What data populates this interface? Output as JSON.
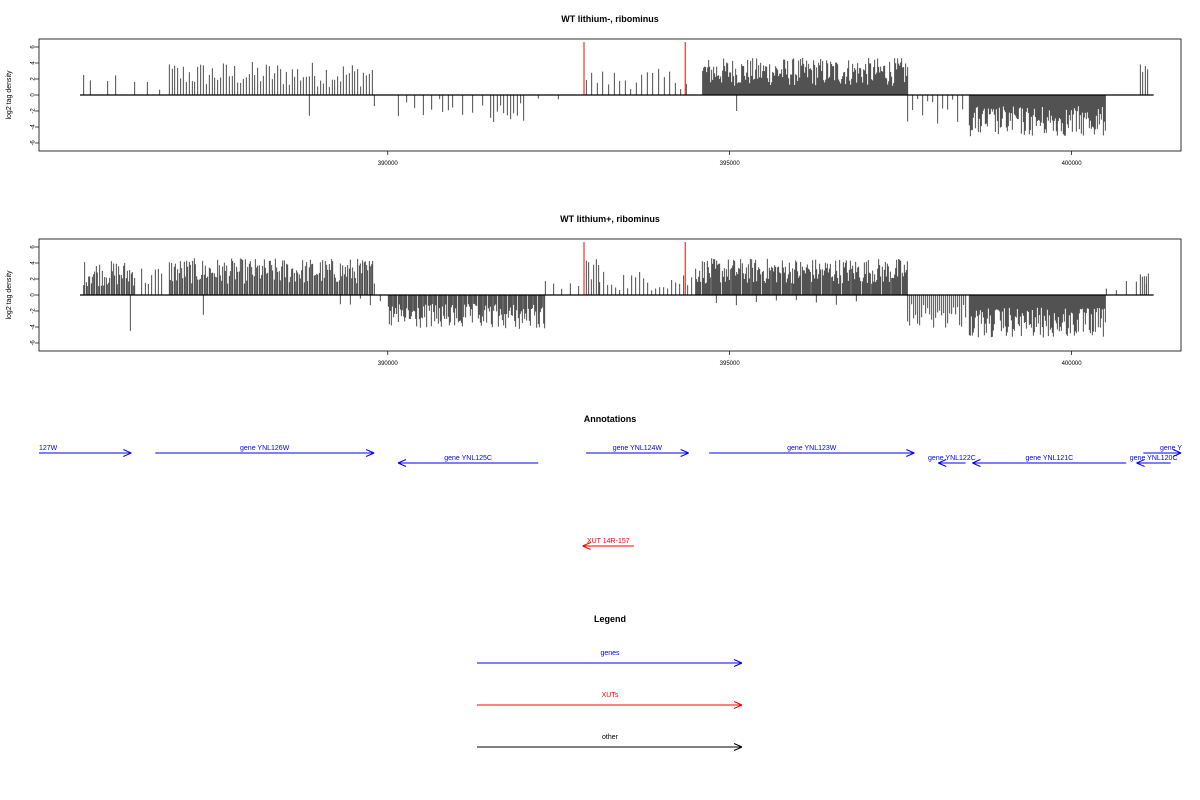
{
  "chart_data": [
    {
      "type": "bar",
      "title": "WT lithium-, ribominus",
      "xlabel": "",
      "ylabel": "log2 tag density",
      "xlim": [
        384900,
        401600
      ],
      "ylim": [
        -7,
        7
      ],
      "x_ticks": [
        "390000",
        "395000",
        "400000"
      ],
      "y_ticks": [
        "-6",
        "-4",
        "-2",
        "0",
        "2",
        "4",
        "6"
      ],
      "baseline": {
        "from": 385500,
        "to": 401200,
        "value": 0
      },
      "red_markers": [
        392870,
        394350
      ],
      "segments": [
        {
          "from": 385550,
          "to": 385650,
          "sign": 1,
          "density": 0.15,
          "mean": 2.2,
          "spread": 0.6
        },
        {
          "from": 385900,
          "to": 386100,
          "sign": 1,
          "density": 0.12,
          "mean": 1.5,
          "spread": 0.6
        },
        {
          "from": 386300,
          "to": 386700,
          "sign": 1,
          "density": 0.08,
          "mean": 1.3,
          "spread": 0.6
        },
        {
          "from": 386800,
          "to": 389800,
          "sign": 1,
          "density": 0.35,
          "mean": 2.6,
          "spread": 1.0
        },
        {
          "from": 388850,
          "to": 388920,
          "sign": -1,
          "density": 0.2,
          "mean": 2.8,
          "spread": 0.3
        },
        {
          "from": 389800,
          "to": 389860,
          "sign": -1,
          "density": 0.2,
          "mean": 1.4,
          "spread": 0.3
        },
        {
          "from": 390150,
          "to": 390900,
          "sign": -1,
          "density": 0.12,
          "mean": 1.6,
          "spread": 0.7
        },
        {
          "from": 390800,
          "to": 391500,
          "sign": -1,
          "density": 0.1,
          "mean": 1.8,
          "spread": 0.7
        },
        {
          "from": 391500,
          "to": 392000,
          "sign": -1,
          "density": 0.3,
          "mean": 2.1,
          "spread": 0.8
        },
        {
          "from": 392200,
          "to": 392500,
          "sign": -1,
          "density": 0.05,
          "mean": 0.7,
          "spread": 0.2
        },
        {
          "from": 392900,
          "to": 394400,
          "sign": 1,
          "density": 0.18,
          "mean": 2.0,
          "spread": 0.8
        },
        {
          "from": 394600,
          "to": 397600,
          "sign": 1,
          "density": 1.0,
          "mean": 2.9,
          "spread": 1.1
        },
        {
          "from": 395100,
          "to": 395150,
          "sign": -1,
          "density": 0.2,
          "mean": 2.0,
          "spread": 0.2
        },
        {
          "from": 397600,
          "to": 398450,
          "sign": -1,
          "density": 0.2,
          "mean": 2.0,
          "spread": 1.0
        },
        {
          "from": 398500,
          "to": 400500,
          "sign": -1,
          "density": 1.0,
          "mean": 3.3,
          "spread": 1.2
        },
        {
          "from": 401000,
          "to": 401120,
          "sign": 1,
          "density": 0.4,
          "mean": 3.0,
          "spread": 0.8
        }
      ]
    },
    {
      "type": "bar",
      "title": "WT lithium+, ribominus",
      "xlabel": "",
      "ylabel": "log2 tag density",
      "xlim": [
        384900,
        401600
      ],
      "ylim": [
        -7,
        7
      ],
      "x_ticks": [
        "390000",
        "395000",
        "400000"
      ],
      "y_ticks": [
        "-6",
        "-4",
        "-2",
        "0",
        "2",
        "4",
        "6"
      ],
      "baseline": {
        "from": 385500,
        "to": 401200,
        "value": 0
      },
      "red_markers": [
        392870,
        394350
      ],
      "segments": [
        {
          "from": 385550,
          "to": 386300,
          "sign": 1,
          "density": 0.8,
          "mean": 2.7,
          "spread": 1.0
        },
        {
          "from": 386230,
          "to": 386260,
          "sign": -1,
          "density": 0.3,
          "mean": 4.6,
          "spread": 0.2
        },
        {
          "from": 386400,
          "to": 386700,
          "sign": 1,
          "density": 0.3,
          "mean": 2.3,
          "spread": 0.9
        },
        {
          "from": 386800,
          "to": 389800,
          "sign": 1,
          "density": 0.8,
          "mean": 3.0,
          "spread": 1.0
        },
        {
          "from": 387300,
          "to": 387340,
          "sign": -1,
          "density": 0.3,
          "mean": 2.8,
          "spread": 0.2
        },
        {
          "from": 389300,
          "to": 389900,
          "sign": -1,
          "density": 0.1,
          "mean": 1.2,
          "spread": 0.5
        },
        {
          "from": 390000,
          "to": 392300,
          "sign": -1,
          "density": 0.9,
          "mean": 2.7,
          "spread": 1.0
        },
        {
          "from": 392300,
          "to": 392900,
          "sign": 1,
          "density": 0.12,
          "mean": 1.2,
          "spread": 0.5
        },
        {
          "from": 392900,
          "to": 393100,
          "sign": 1,
          "density": 0.4,
          "mean": 3.5,
          "spread": 1.0
        },
        {
          "from": 393100,
          "to": 394500,
          "sign": 1,
          "density": 0.25,
          "mean": 1.8,
          "spread": 0.8
        },
        {
          "from": 394500,
          "to": 397600,
          "sign": 1,
          "density": 0.95,
          "mean": 3.0,
          "spread": 1.0
        },
        {
          "from": 394800,
          "to": 397000,
          "sign": -1,
          "density": 0.05,
          "mean": 1.0,
          "spread": 0.3
        },
        {
          "from": 397600,
          "to": 398450,
          "sign": -1,
          "density": 0.5,
          "mean": 2.6,
          "spread": 1.0
        },
        {
          "from": 398500,
          "to": 400500,
          "sign": -1,
          "density": 1.0,
          "mean": 3.5,
          "spread": 1.2
        },
        {
          "from": 400500,
          "to": 401200,
          "sign": 1,
          "density": 0.1,
          "mean": 1.2,
          "spread": 0.4
        },
        {
          "from": 401000,
          "to": 401120,
          "sign": 1,
          "density": 0.5,
          "mean": 2.5,
          "spread": 0.8
        }
      ]
    }
  ],
  "annotations": {
    "title": "Annotations",
    "features": [
      {
        "label": "127W",
        "start": 384900,
        "end": 386250,
        "strand": "+",
        "kind": "gene",
        "row": 1
      },
      {
        "label": "gene YNL126W",
        "start": 386600,
        "end": 389800,
        "strand": "+",
        "kind": "gene",
        "row": 1
      },
      {
        "label": "gene YNL125C",
        "start": 390150,
        "end": 392200,
        "strand": "-",
        "kind": "gene",
        "row": 2
      },
      {
        "label": "gene YNL124W",
        "start": 392900,
        "end": 394400,
        "strand": "+",
        "kind": "gene",
        "row": 1
      },
      {
        "label": "gene YNL123W",
        "start": 394700,
        "end": 397700,
        "strand": "+",
        "kind": "gene",
        "row": 1
      },
      {
        "label": "gene YNL122C",
        "start": 398050,
        "end": 398450,
        "strand": "-",
        "kind": "gene",
        "row": 2
      },
      {
        "label": "gene YNL121C",
        "start": 398550,
        "end": 400800,
        "strand": "-",
        "kind": "gene",
        "row": 2
      },
      {
        "label": "gene YNL120C",
        "start": 400950,
        "end": 401450,
        "strand": "-",
        "kind": "gene",
        "row": 2
      },
      {
        "label": "gene Y",
        "start": 401050,
        "end": 401600,
        "strand": "+",
        "kind": "gene",
        "row": 1
      },
      {
        "label": "XUT 14R-157",
        "start": 392850,
        "end": 393600,
        "strand": "-",
        "kind": "xut",
        "row": 3
      }
    ]
  },
  "legend": {
    "title": "Legend",
    "items": [
      {
        "label": "genes",
        "color": "#0000ff"
      },
      {
        "label": "XUTs",
        "color": "#ff0000"
      },
      {
        "label": "other",
        "color": "#000000"
      }
    ]
  },
  "colors": {
    "gene": "#0000ff",
    "xut": "#ff0000",
    "other": "#000000",
    "marker": "#ff0000",
    "bar": "#000000"
  }
}
